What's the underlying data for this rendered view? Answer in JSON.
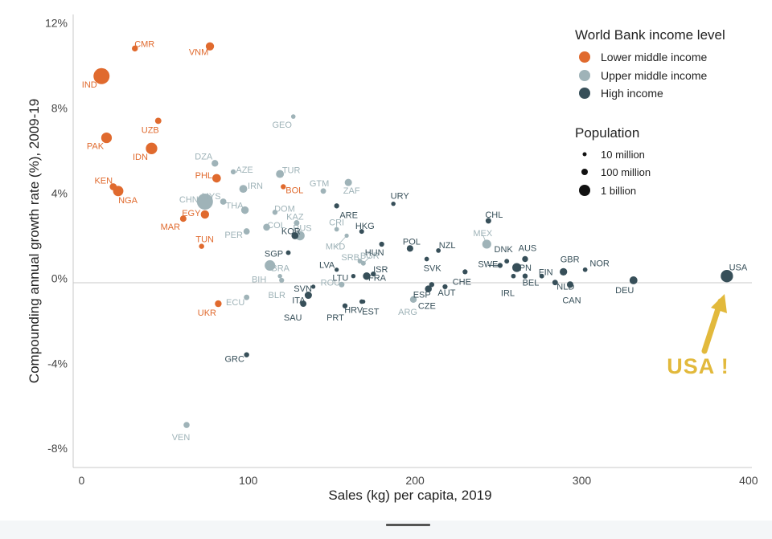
{
  "chart_data": {
    "type": "scatter",
    "xlabel": "Sales (kg) per capita, 2019",
    "ylabel": "Compounding annual growth rate (%), 2009-19",
    "xlim": [
      -5,
      402
    ],
    "ylim": [
      -8.9,
      12.4
    ],
    "xticks": [
      0,
      100,
      200,
      300,
      400
    ],
    "xtick_labels": [
      "0",
      "100",
      "200",
      "300",
      "400"
    ],
    "yticks": [
      12,
      8,
      4,
      0,
      -4,
      -8
    ],
    "ytick_labels": [
      "12%",
      "8%",
      "4%",
      "0%",
      "-4%",
      "-8%"
    ],
    "grid": false,
    "reference_line_y": 0,
    "legend_placement": "top-right",
    "colors": {
      "Lower middle income": "#e06a2e",
      "Upper middle income": "#9fb3b8",
      "High income": "#374f59"
    },
    "income_legend": {
      "title": "World Bank income level",
      "entries": [
        "Lower middle income",
        "Upper middle income",
        "High income"
      ]
    },
    "population_legend": {
      "title": "Population",
      "entries": [
        "10 million",
        "100 million",
        "1 billion"
      ],
      "population_millions": [
        10,
        100,
        1000
      ]
    },
    "annotation": {
      "text": "USA !",
      "color": "#e2b93c",
      "points_to": "USA"
    },
    "points": [
      {
        "label": "CMR",
        "x": 32,
        "y": 10.8,
        "income": "Lower middle income",
        "pop": 25
      },
      {
        "label": "VNM",
        "x": 77,
        "y": 10.9,
        "income": "Lower middle income",
        "pop": 96
      },
      {
        "label": "IND",
        "x": 12,
        "y": 9.5,
        "income": "Lower middle income",
        "pop": 1370
      },
      {
        "label": "UZB",
        "x": 46,
        "y": 7.4,
        "income": "Lower middle income",
        "pop": 33
      },
      {
        "label": "PAK",
        "x": 15,
        "y": 6.6,
        "income": "Lower middle income",
        "pop": 216
      },
      {
        "label": "IDN",
        "x": 42,
        "y": 6.1,
        "income": "Lower middle income",
        "pop": 270
      },
      {
        "label": "KEN",
        "x": 19,
        "y": 4.3,
        "income": "Lower middle income",
        "pop": 52
      },
      {
        "label": "NGA",
        "x": 22,
        "y": 4.1,
        "income": "Lower middle income",
        "pop": 200
      },
      {
        "label": "PHL",
        "x": 81,
        "y": 4.7,
        "income": "Lower middle income",
        "pop": 108
      },
      {
        "label": "BOL",
        "x": 121,
        "y": 4.3,
        "income": "Lower middle income",
        "pop": 11
      },
      {
        "label": "EGY",
        "x": 74,
        "y": 3.0,
        "income": "Lower middle income",
        "pop": 100
      },
      {
        "label": "MAR",
        "x": 61,
        "y": 2.8,
        "income": "Lower middle income",
        "pop": 36
      },
      {
        "label": "TUN",
        "x": 72,
        "y": 1.5,
        "income": "Lower middle income",
        "pop": 12
      },
      {
        "label": "UKR",
        "x": 82,
        "y": -1.2,
        "income": "Lower middle income",
        "pop": 44
      },
      {
        "label": "GEO",
        "x": 127,
        "y": 7.6,
        "income": "Upper middle income",
        "pop": 4
      },
      {
        "label": "DZA",
        "x": 80,
        "y": 5.4,
        "income": "Upper middle income",
        "pop": 43
      },
      {
        "label": "AZE",
        "x": 91,
        "y": 5.0,
        "income": "Upper middle income",
        "pop": 10
      },
      {
        "label": "TUR",
        "x": 119,
        "y": 4.9,
        "income": "Upper middle income",
        "pop": 83
      },
      {
        "label": "IRN",
        "x": 97,
        "y": 4.2,
        "income": "Upper middle income",
        "pop": 83
      },
      {
        "label": "GTM",
        "x": 145,
        "y": 4.1,
        "income": "Upper middle income",
        "pop": 17
      },
      {
        "label": "ZAF",
        "x": 160,
        "y": 4.5,
        "income": "Upper middle income",
        "pop": 59
      },
      {
        "label": "CHN",
        "x": 74,
        "y": 3.6,
        "income": "Upper middle income",
        "pop": 1400
      },
      {
        "label": "MYS",
        "x": 85,
        "y": 3.6,
        "income": "Upper middle income",
        "pop": 32
      },
      {
        "label": "THA",
        "x": 98,
        "y": 3.2,
        "income": "Upper middle income",
        "pop": 70
      },
      {
        "label": "DOM",
        "x": 116,
        "y": 3.1,
        "income": "Upper middle income",
        "pop": 11
      },
      {
        "label": "KAZ",
        "x": 129,
        "y": 2.6,
        "income": "Upper middle income",
        "pop": 19
      },
      {
        "label": "PER",
        "x": 99,
        "y": 2.2,
        "income": "Upper middle income",
        "pop": 32
      },
      {
        "label": "COL",
        "x": 111,
        "y": 2.4,
        "income": "Upper middle income",
        "pop": 50
      },
      {
        "label": "CRI",
        "x": 153,
        "y": 2.3,
        "income": "Upper middle income",
        "pop": 5
      },
      {
        "label": "RUS",
        "x": 131,
        "y": 2.0,
        "income": "Upper middle income",
        "pop": 145
      },
      {
        "label": "MKD",
        "x": 159,
        "y": 2.0,
        "income": "Upper middle income",
        "pop": 2
      },
      {
        "label": "BRA",
        "x": 113,
        "y": 0.6,
        "income": "Upper middle income",
        "pop": 210
      },
      {
        "label": "SRB",
        "x": 167,
        "y": 0.8,
        "income": "Upper middle income",
        "pop": 7
      },
      {
        "label": "BGR",
        "x": 169,
        "y": 0.7,
        "income": "Upper middle income",
        "pop": 7
      },
      {
        "label": "BIH",
        "x": 119,
        "y": 0.1,
        "income": "Upper middle income",
        "pop": 3
      },
      {
        "label": "BLR",
        "x": 120,
        "y": -0.1,
        "income": "Upper middle income",
        "pop": 9
      },
      {
        "label": "ROU",
        "x": 156,
        "y": -0.3,
        "income": "Upper middle income",
        "pop": 19
      },
      {
        "label": "ECU",
        "x": 99,
        "y": -0.9,
        "income": "Upper middle income",
        "pop": 17
      },
      {
        "label": "MEX",
        "x": 243,
        "y": 1.6,
        "income": "Upper middle income",
        "pop": 127
      },
      {
        "label": "ARG",
        "x": 199,
        "y": -1.0,
        "income": "Upper middle income",
        "pop": 45
      },
      {
        "label": "VEN",
        "x": 63,
        "y": -6.9,
        "income": "Upper middle income",
        "pop": 28
      },
      {
        "label": "URY",
        "x": 187,
        "y": 3.5,
        "income": "High income",
        "pop": 3
      },
      {
        "label": "ARE",
        "x": 153,
        "y": 3.4,
        "income": "High income",
        "pop": 10
      },
      {
        "label": "CHL",
        "x": 244,
        "y": 2.7,
        "income": "High income",
        "pop": 19
      },
      {
        "label": "HKG",
        "x": 168,
        "y": 2.2,
        "income": "High income",
        "pop": 7
      },
      {
        "label": "HUN",
        "x": 180,
        "y": 1.6,
        "income": "High income",
        "pop": 10
      },
      {
        "label": "POL",
        "x": 197,
        "y": 1.4,
        "income": "High income",
        "pop": 38
      },
      {
        "label": "NZL",
        "x": 214,
        "y": 1.3,
        "income": "High income",
        "pop": 5
      },
      {
        "label": "KOR",
        "x": 128,
        "y": 2.0,
        "income": "High income",
        "pop": 52
      },
      {
        "label": "SGP",
        "x": 124,
        "y": 1.2,
        "income": "High income",
        "pop": 6
      },
      {
        "label": "DNK",
        "x": 255,
        "y": 0.8,
        "income": "High income",
        "pop": 6
      },
      {
        "label": "AUS",
        "x": 266,
        "y": 0.9,
        "income": "High income",
        "pop": 25
      },
      {
        "label": "GBR",
        "x": 289,
        "y": 0.3,
        "income": "High income",
        "pop": 67
      },
      {
        "label": "NOR",
        "x": 302,
        "y": 0.4,
        "income": "High income",
        "pop": 5
      },
      {
        "label": "SWE",
        "x": 251,
        "y": 0.6,
        "income": "High income",
        "pop": 10
      },
      {
        "label": "JPN",
        "x": 261,
        "y": 0.5,
        "income": "High income",
        "pop": 126
      },
      {
        "label": "FIN",
        "x": 276,
        "y": 0.1,
        "income": "High income",
        "pop": 6
      },
      {
        "label": "LVA",
        "x": 153,
        "y": 0.4,
        "income": "High income",
        "pop": 2
      },
      {
        "label": "ISR",
        "x": 175,
        "y": 0.2,
        "income": "High income",
        "pop": 9
      },
      {
        "label": "SVK",
        "x": 207,
        "y": 0.9,
        "income": "High income",
        "pop": 5
      },
      {
        "label": "CHE",
        "x": 230,
        "y": 0.3,
        "income": "High income",
        "pop": 9
      },
      {
        "label": "BEL",
        "x": 266,
        "y": 0.1,
        "income": "High income",
        "pop": 11
      },
      {
        "label": "NLD",
        "x": 284,
        "y": -0.2,
        "income": "High income",
        "pop": 17
      },
      {
        "label": "DEU",
        "x": 331,
        "y": -0.1,
        "income": "High income",
        "pop": 83
      },
      {
        "label": "USA",
        "x": 387,
        "y": 0.1,
        "income": "High income",
        "pop": 330
      },
      {
        "label": "LTU",
        "x": 163,
        "y": 0.1,
        "income": "High income",
        "pop": 3
      },
      {
        "label": "FRA",
        "x": 171,
        "y": 0.1,
        "income": "High income",
        "pop": 67
      },
      {
        "label": "SVN",
        "x": 139,
        "y": -0.4,
        "income": "High income",
        "pop": 2
      },
      {
        "label": "ESP",
        "x": 208,
        "y": -0.5,
        "income": "High income",
        "pop": 47
      },
      {
        "label": "AUT",
        "x": 218,
        "y": -0.4,
        "income": "High income",
        "pop": 9
      },
      {
        "label": "IRL",
        "x": 259,
        "y": 0.1,
        "income": "High income",
        "pop": 5
      },
      {
        "label": "CAN",
        "x": 293,
        "y": -0.3,
        "income": "High income",
        "pop": 38
      },
      {
        "label": "ITA",
        "x": 136,
        "y": -0.8,
        "income": "High income",
        "pop": 60
      },
      {
        "label": "CZE",
        "x": 210,
        "y": -0.3,
        "income": "High income",
        "pop": 11
      },
      {
        "label": "HRV",
        "x": 168,
        "y": -1.1,
        "income": "High income",
        "pop": 4
      },
      {
        "label": "SAU",
        "x": 133,
        "y": -1.2,
        "income": "High income",
        "pop": 34
      },
      {
        "label": "PRT",
        "x": 158,
        "y": -1.3,
        "income": "High income",
        "pop": 10
      },
      {
        "label": "EST",
        "x": 169,
        "y": -1.1,
        "income": "High income",
        "pop": 1
      },
      {
        "label": "GRC",
        "x": 99,
        "y": -3.6,
        "income": "High income",
        "pop": 11
      }
    ]
  }
}
